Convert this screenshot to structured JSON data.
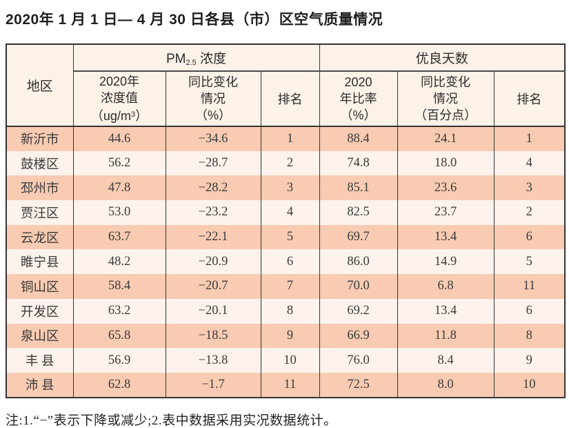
{
  "page": {
    "title": "2020年 1 月 1 日— 4 月 30 日各县（市）区空气质量情况",
    "note": "注:1.“−”表示下降或减少;2.表中数据采用实况数据统计。"
  },
  "colors": {
    "row_odd_bg": "#f8cbb2",
    "row_even_bg": "#fdf3ec",
    "header_bg": "#fcf2e8",
    "border": "#333333",
    "text": "#3a3a3a"
  },
  "table": {
    "header": {
      "region": "地区",
      "pm_group": {
        "prefix": "PM",
        "subscript": "2.5",
        "suffix": " 浓度"
      },
      "good_group": "优良天数",
      "pm_value": {
        "l1": "2020年",
        "l2": "浓度值",
        "l3a": "（ug/m",
        "l3sup": "3",
        "l3b": "）"
      },
      "pm_change": {
        "l1": "同比变化",
        "l2": "情况",
        "l3": "（%）"
      },
      "pm_rank": "排名",
      "good_rate": {
        "l1": "2020",
        "l2": "年比率",
        "l3": "（%）"
      },
      "good_change": {
        "l1": "同比变化",
        "l2": "情况",
        "l3": "（百分点）"
      },
      "good_rank": "排名"
    },
    "row_field_order": [
      "region",
      "pm_value",
      "pm_change",
      "pm_rank",
      "good_rate",
      "good_change",
      "good_rank"
    ],
    "rows": [
      {
        "region": "新沂市",
        "pm_value": "44.6",
        "pm_change": "−34.6",
        "pm_rank": "1",
        "good_rate": "88.4",
        "good_change": "24.1",
        "good_rank": "1"
      },
      {
        "region": "鼓楼区",
        "pm_value": "56.2",
        "pm_change": "−28.7",
        "pm_rank": "2",
        "good_rate": "74.8",
        "good_change": "18.0",
        "good_rank": "4"
      },
      {
        "region": "邳州市",
        "pm_value": "47.8",
        "pm_change": "−28.2",
        "pm_rank": "3",
        "good_rate": "85.1",
        "good_change": "23.6",
        "good_rank": "3"
      },
      {
        "region": "贾汪区",
        "pm_value": "53.0",
        "pm_change": "−23.2",
        "pm_rank": "4",
        "good_rate": "82.5",
        "good_change": "23.7",
        "good_rank": "2"
      },
      {
        "region": "云龙区",
        "pm_value": "63.7",
        "pm_change": "−22.1",
        "pm_rank": "5",
        "good_rate": "69.7",
        "good_change": "13.4",
        "good_rank": "6"
      },
      {
        "region": "睢宁县",
        "pm_value": "48.2",
        "pm_change": "−20.9",
        "pm_rank": "6",
        "good_rate": "86.0",
        "good_change": "14.9",
        "good_rank": "5"
      },
      {
        "region": "铜山区",
        "pm_value": "58.4",
        "pm_change": "−20.7",
        "pm_rank": "7",
        "good_rate": "70.0",
        "good_change": "6.8",
        "good_rank": "11"
      },
      {
        "region": "开发区",
        "pm_value": "63.2",
        "pm_change": "−20.1",
        "pm_rank": "8",
        "good_rate": "69.2",
        "good_change": "13.4",
        "good_rank": "6"
      },
      {
        "region": "泉山区",
        "pm_value": "65.8",
        "pm_change": "−18.5",
        "pm_rank": "9",
        "good_rate": "66.9",
        "good_change": "11.8",
        "good_rank": "8"
      },
      {
        "region": "丰 县",
        "pm_value": "56.9",
        "pm_change": "−13.8",
        "pm_rank": "10",
        "good_rate": "76.0",
        "good_change": "8.4",
        "good_rank": "9"
      },
      {
        "region": "沛 县",
        "pm_value": "62.8",
        "pm_change": "−1.7",
        "pm_rank": "11",
        "good_rate": "72.5",
        "good_change": "8.0",
        "good_rank": "10"
      }
    ]
  }
}
